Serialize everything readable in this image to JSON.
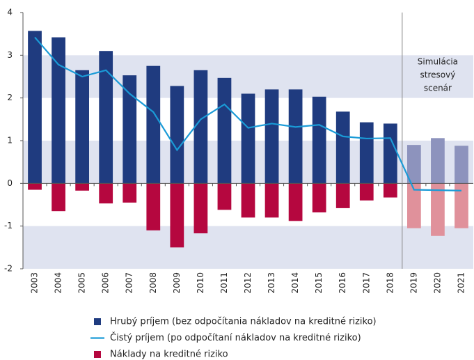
{
  "chart_data": {
    "type": "bar_line",
    "categories": [
      "2003",
      "2004",
      "2005",
      "2006",
      "2007",
      "2008",
      "2009",
      "2010",
      "2011",
      "2012",
      "2013",
      "2014",
      "2015",
      "2016",
      "2017",
      "2018",
      "2019",
      "2020",
      "2021"
    ],
    "series": [
      {
        "name": "Hrubý príjem (bez odpočítania nákladov na kreditné riziko)",
        "kind": "bar",
        "color": "#1f3b7f",
        "colors": [
          "#1f3b7f",
          "#1f3b7f",
          "#1f3b7f",
          "#1f3b7f",
          "#1f3b7f",
          "#1f3b7f",
          "#1f3b7f",
          "#1f3b7f",
          "#1f3b7f",
          "#1f3b7f",
          "#1f3b7f",
          "#1f3b7f",
          "#1f3b7f",
          "#1f3b7f",
          "#1f3b7f",
          "#1f3b7f",
          "#8d93bd",
          "#8d93bd",
          "#8d93bd"
        ],
        "values": [
          3.57,
          3.42,
          2.65,
          3.1,
          2.53,
          2.75,
          2.28,
          2.65,
          2.47,
          2.1,
          2.2,
          2.2,
          2.03,
          1.68,
          1.43,
          1.4,
          0.9,
          1.06,
          0.88
        ]
      },
      {
        "name": "Čistý príjem (po odpočítaní nákladov na kreditné riziko)",
        "kind": "line",
        "color": "#1a9bd7",
        "values": [
          3.42,
          2.78,
          2.5,
          2.65,
          2.1,
          1.67,
          0.78,
          1.5,
          1.85,
          1.3,
          1.4,
          1.32,
          1.37,
          1.1,
          1.05,
          1.06,
          -0.15,
          -0.16,
          -0.17
        ]
      },
      {
        "name": "Náklady na kreditné riziko",
        "kind": "bar",
        "color": "#b5073f",
        "colors": [
          "#b5073f",
          "#b5073f",
          "#b5073f",
          "#b5073f",
          "#b5073f",
          "#b5073f",
          "#b5073f",
          "#b5073f",
          "#b5073f",
          "#b5073f",
          "#b5073f",
          "#b5073f",
          "#b5073f",
          "#b5073f",
          "#b5073f",
          "#b5073f",
          "#e0919b",
          "#e0919b",
          "#e0919b"
        ],
        "values": [
          -0.15,
          -0.65,
          -0.17,
          -0.47,
          -0.45,
          -1.1,
          -1.5,
          -1.17,
          -0.62,
          -0.8,
          -0.8,
          -0.88,
          -0.68,
          -0.58,
          -0.4,
          -0.33,
          -1.05,
          -1.23,
          -1.05
        ]
      }
    ],
    "ylim": [
      -2,
      4
    ],
    "yticks": [
      -2,
      -1,
      0,
      1,
      2,
      3,
      4
    ],
    "band_color": "#dfe3f0",
    "annotation": {
      "lines": [
        "Simulácia",
        "stresový",
        "scenár"
      ],
      "start_category": "2019"
    }
  }
}
